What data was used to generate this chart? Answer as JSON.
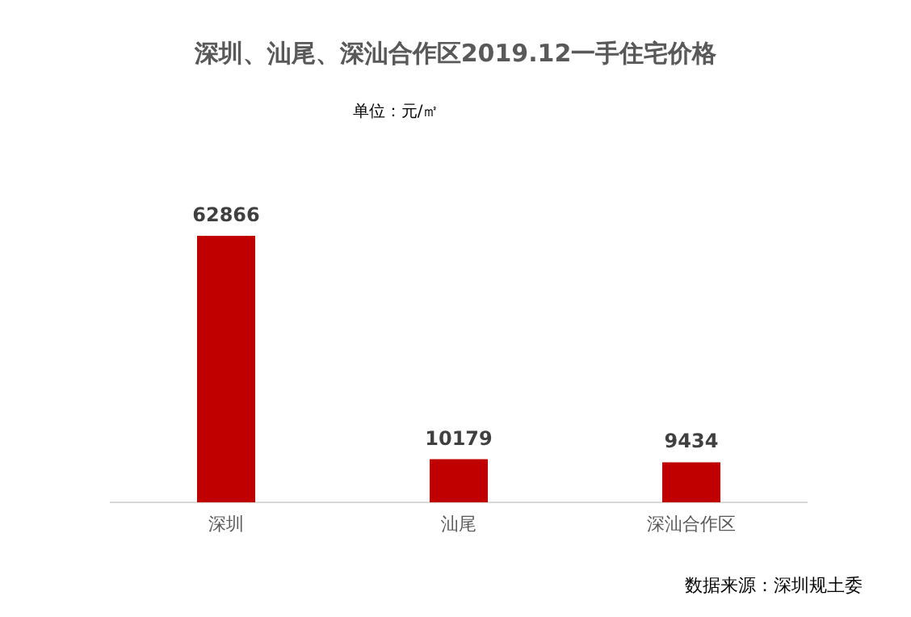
{
  "chart_data": {
    "type": "bar",
    "title": "深圳、汕尾、深汕合作区2019.12一手住宅价格",
    "subtitle": "单位：元/㎡",
    "categories": [
      "深圳",
      "汕尾",
      "深汕合作区"
    ],
    "values": [
      62866,
      10179,
      9434
    ],
    "color": "#c00000",
    "data_labels": true,
    "annotations": [
      "数据来源：深圳规土委"
    ]
  }
}
